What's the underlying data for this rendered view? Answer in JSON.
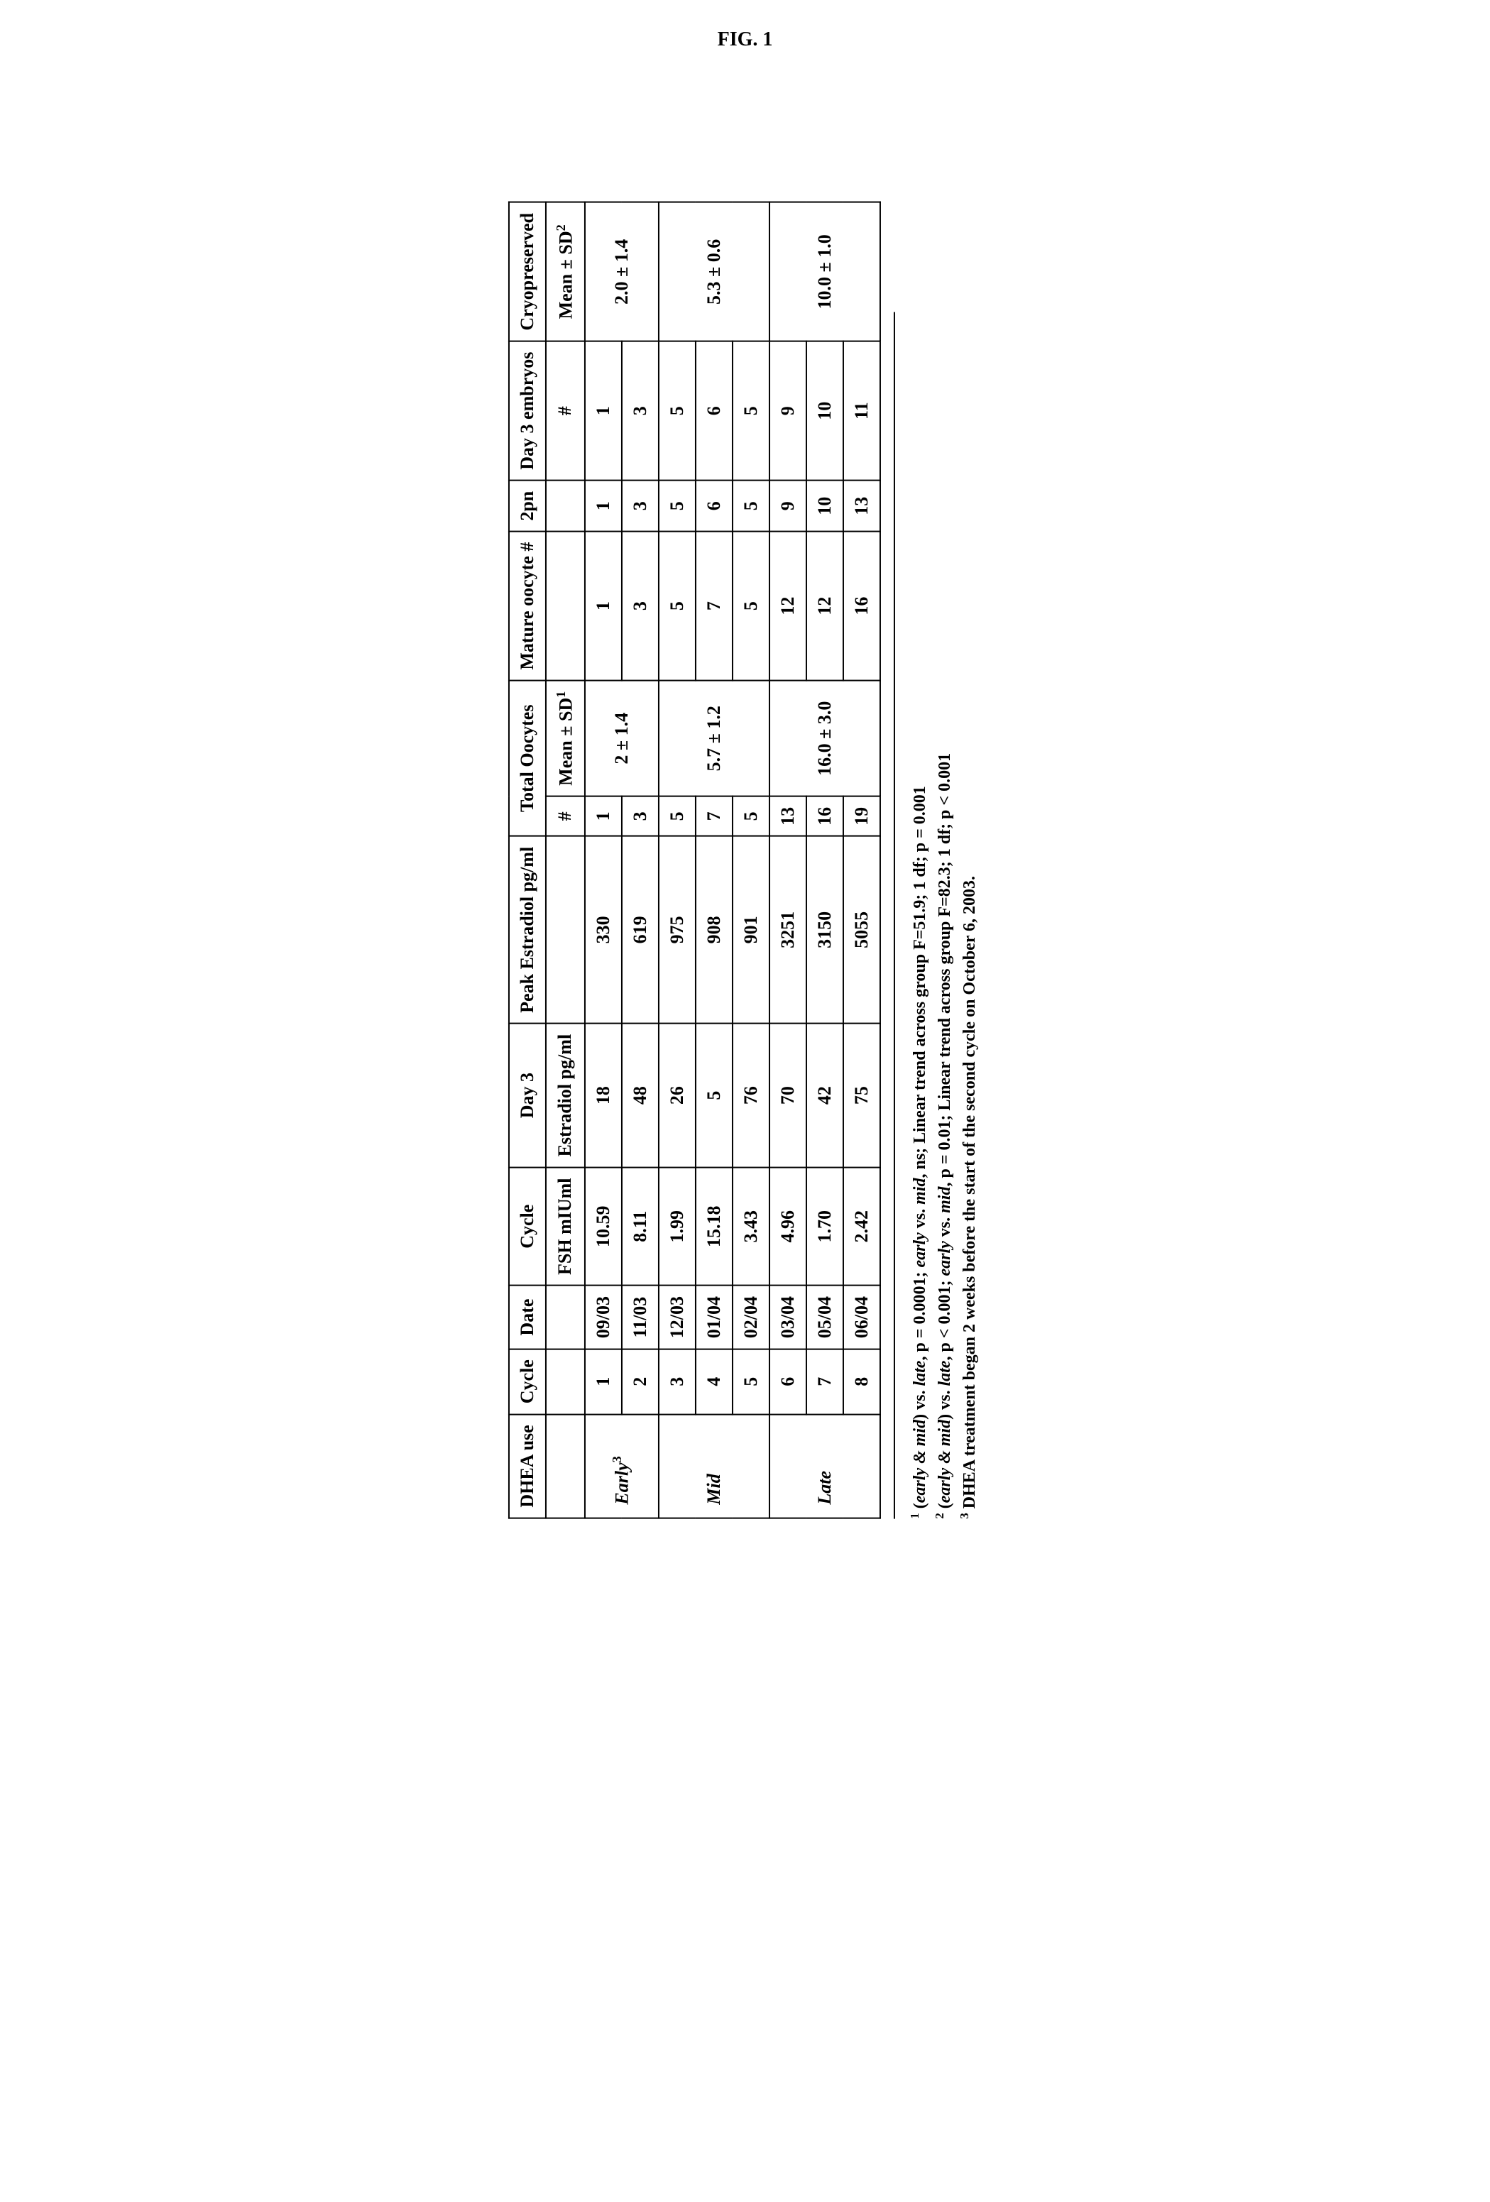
{
  "figure_label": "FIG. 1",
  "headers": {
    "dhea": "DHEA use",
    "cycle": "Cycle",
    "date": "Date",
    "cycle2": "Cycle",
    "day3": "Day 3",
    "peak_estradiol": "Peak Estradiol pg/ml",
    "total_oocytes": "Total Oocytes",
    "mature_oocyte": "Mature oocyte #",
    "pn2": "2pn",
    "day3_embryos": "Day 3 embryos",
    "cryo": "Cryopreserved"
  },
  "subheaders": {
    "fsh": "FSH mIUml",
    "estradiol": "Estradiol pg/ml",
    "hash": "#",
    "mean_sd1": "Mean ± SD",
    "mean_sd2": "Mean ± SD",
    "sup1": "1",
    "sup2": "2"
  },
  "groups": {
    "early_label": "Early",
    "early_sup": "3",
    "mid_label": "Mid",
    "late_label": "Late",
    "early_oocytes_mean": "2 ± 1.4",
    "mid_oocytes_mean": "5.7 ± 1.2",
    "late_oocytes_mean": "16.0 ± 3.0",
    "early_cryo_mean": "2.0 ± 1.4",
    "mid_cryo_mean": "5.3 ± 0.6",
    "late_cryo_mean": "10.0 ± 1.0"
  },
  "rows": [
    {
      "cycle": "1",
      "date": "09/03",
      "fsh": "10.59",
      "estradiol": "18",
      "peak": "330",
      "total": "1",
      "mature": "1",
      "pn2": "1",
      "day3emb": "1"
    },
    {
      "cycle": "2",
      "date": "11/03",
      "fsh": "8.11",
      "estradiol": "48",
      "peak": "619",
      "total": "3",
      "mature": "3",
      "pn2": "3",
      "day3emb": "3"
    },
    {
      "cycle": "3",
      "date": "12/03",
      "fsh": "1.99",
      "estradiol": "26",
      "peak": "975",
      "total": "5",
      "mature": "5",
      "pn2": "5",
      "day3emb": "5"
    },
    {
      "cycle": "4",
      "date": "01/04",
      "fsh": "15.18",
      "estradiol": "5",
      "peak": "908",
      "total": "7",
      "mature": "7",
      "pn2": "6",
      "day3emb": "6"
    },
    {
      "cycle": "5",
      "date": "02/04",
      "fsh": "3.43",
      "estradiol": "76",
      "peak": "901",
      "total": "5",
      "mature": "5",
      "pn2": "5",
      "day3emb": "5"
    },
    {
      "cycle": "6",
      "date": "03/04",
      "fsh": "4.96",
      "estradiol": "70",
      "peak": "3251",
      "total": "13",
      "mature": "12",
      "pn2": "9",
      "day3emb": "9"
    },
    {
      "cycle": "7",
      "date": "05/04",
      "fsh": "1.70",
      "estradiol": "42",
      "peak": "3150",
      "total": "16",
      "mature": "12",
      "pn2": "10",
      "day3emb": "10"
    },
    {
      "cycle": "8",
      "date": "06/04",
      "fsh": "2.42",
      "estradiol": "75",
      "peak": "5055",
      "total": "19",
      "mature": "16",
      "pn2": "13",
      "day3emb": "11"
    }
  ],
  "footnotes": {
    "f1_sup": "1",
    "f1_a": " (",
    "f1_b": "early & mid",
    "f1_c": ") vs. ",
    "f1_d": "late",
    "f1_e": ", p = 0.0001; ",
    "f1_f": "early",
    "f1_g": " vs. ",
    "f1_h": "mid",
    "f1_i": ", ns; Linear trend across group F=51.9; 1 df; p = 0.001",
    "f2_sup": "2",
    "f2_a": " (",
    "f2_b": "early & mid",
    "f2_c": ") vs. ",
    "f2_d": "late",
    "f2_e": ", p < 0.001; ",
    "f2_f": "early",
    "f2_g": " vs. ",
    "f2_h": "mid",
    "f2_i": ", p = 0.01; Linear trend across group F=82.3; 1 df; p < 0.001",
    "f3_sup": "3",
    "f3_text": " DHEA treatment began 2 weeks before the start of the second cycle on October 6, 2003."
  }
}
